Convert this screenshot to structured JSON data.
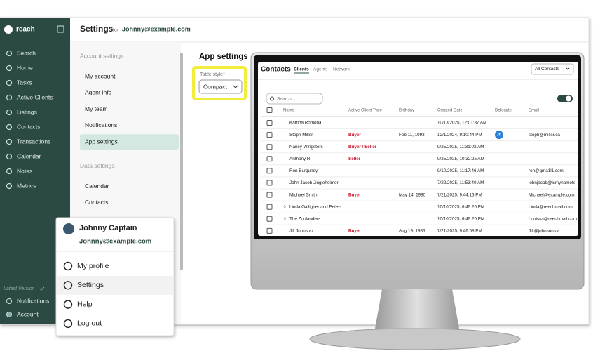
{
  "app": {
    "logo": "reach",
    "nav": [
      "Search",
      "Home",
      "Tasks",
      "Active Clients",
      "Listings",
      "Contacts",
      "Transactions",
      "Calendar",
      "Notes",
      "Metrics"
    ],
    "version": "Latest Version",
    "bottom_nav": [
      "Notifications",
      "Account"
    ]
  },
  "header": {
    "title": "Settings",
    "for": "for",
    "email": "Johnny@example.com"
  },
  "settings_menu": {
    "sections": [
      {
        "title": "Account settings",
        "items": [
          "My account",
          "Agent info",
          "My team",
          "Notifications",
          "App settings"
        ]
      },
      {
        "title": "Data settings",
        "items": [
          "Calendar",
          "Contacts"
        ]
      }
    ],
    "selected": {
      "section": 0,
      "item": 4
    }
  },
  "app_settings": {
    "title": "App settings",
    "field_label": "Table style*",
    "field_value": "Compact"
  },
  "contacts_screen": {
    "title": "Contacts",
    "tabs": [
      "Clients",
      "Agents",
      "Network"
    ],
    "active_tab": 0,
    "filter": "All Contacts",
    "search_placeholder": "Search...",
    "columns": [
      "Name",
      "Active Client Type",
      "Birthday",
      "Created Date",
      "Delegate",
      "Email"
    ],
    "rows": [
      {
        "name": "Katrina Romona",
        "created": "10/13/2025, 12:01:37 AM"
      },
      {
        "name": "Steph Miller",
        "type": "Buyer",
        "birthday": "Feb 11, 1993",
        "created": "12/1/2024, 9:10:44 PM",
        "delegate": "JC",
        "email": "steph@miller.ca"
      },
      {
        "name": "Nancy Wingsters",
        "type": "Buyer / Seller",
        "created": "9/25/2025, 11:31:02 AM"
      },
      {
        "name": "Anthony R",
        "type": "Seller",
        "created": "9/25/2025, 10:32:25 AM"
      },
      {
        "name": "Ron Burgundy",
        "created": "9/10/2025, 11:17:46 AM",
        "email": "ron@gma1l1.com"
      },
      {
        "name": "John Jacob Jingleheimer-",
        "created": "7/22/2025, 11:53:40 AM",
        "email": "johnjacob@ismynameto"
      },
      {
        "name": "Michael Smith",
        "type": "Buyer",
        "birthday": "May 14, 1980",
        "created": "7/21/2025, 9:44:16 PM",
        "email": "Michael@example.com"
      },
      {
        "name": "Linda Galligher and Peter-",
        "group": true,
        "created": "10/10/2025, 6:49:20 PM",
        "email": "Linda@reechmail.com"
      },
      {
        "name": "The Zoolanders",
        "group": true,
        "created": "10/10/2025, 6:49:20 PM",
        "email": "Louissa@reechmail.com"
      },
      {
        "name": "Jill Johnson",
        "type": "Buyer",
        "birthday": "Aug 19, 1986",
        "created": "7/21/2025, 9:46:58 PM",
        "email": "Jill@johnson.ca"
      }
    ]
  },
  "user_menu": {
    "name": "Johnny Captain",
    "email": "Johnny@example.com",
    "items": [
      "My profile",
      "Settings",
      "Help",
      "Log out"
    ],
    "highlighted": 1
  }
}
